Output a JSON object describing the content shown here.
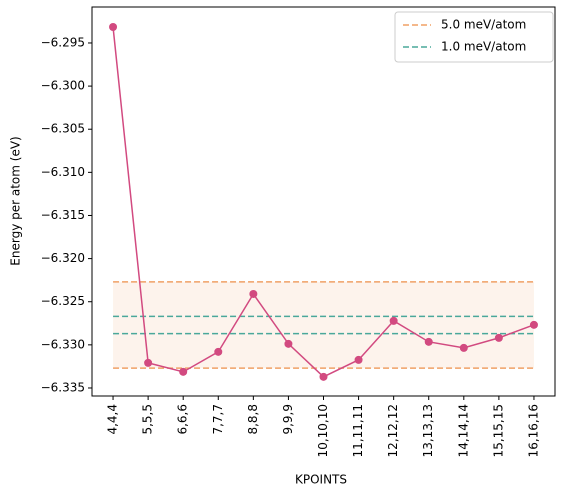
{
  "chart_data": {
    "type": "line",
    "xlabel": "KPOINTS",
    "ylabel": "Energy per atom (eV)",
    "categories": [
      "4,4,4",
      "5,5,5",
      "6,6,6",
      "7,7,7",
      "8,8,8",
      "9,9,9",
      "10,10,10",
      "11,11,11",
      "12,12,12",
      "13,13,13",
      "14,14,14",
      "15,15,15",
      "16,16,16"
    ],
    "series": [
      {
        "color": "#d24a80",
        "values": [
          -6.29315,
          -6.33209,
          -6.33313,
          -6.33081,
          -6.3241,
          -6.32988,
          -6.33371,
          -6.33174,
          -6.32722,
          -6.32965,
          -6.33035,
          -6.32919,
          -6.32768
        ]
      }
    ],
    "reference_lines": [
      {
        "name": "5.0 meV/atom",
        "color": "#f0a065",
        "values": [
          -6.3227,
          -6.3327
        ],
        "band_color": "#fdf3ec"
      },
      {
        "name": "1.0 meV/atom",
        "color": "#4aa89a",
        "values": [
          -6.3267,
          -6.3287
        ]
      }
    ],
    "ylim": [
      -6.33593,
      -6.29083
    ],
    "yticks": [
      {
        "value": -6.335,
        "label": "−6.335"
      },
      {
        "value": -6.33,
        "label": "−6.330"
      },
      {
        "value": -6.325,
        "label": "−6.325"
      },
      {
        "value": -6.32,
        "label": "−6.320"
      },
      {
        "value": -6.315,
        "label": "−6.315"
      },
      {
        "value": -6.31,
        "label": "−6.310"
      },
      {
        "value": -6.305,
        "label": "−6.305"
      },
      {
        "value": -6.3,
        "label": "−6.300"
      },
      {
        "value": -6.295,
        "label": "−6.295"
      }
    ],
    "legend": "upper right"
  }
}
